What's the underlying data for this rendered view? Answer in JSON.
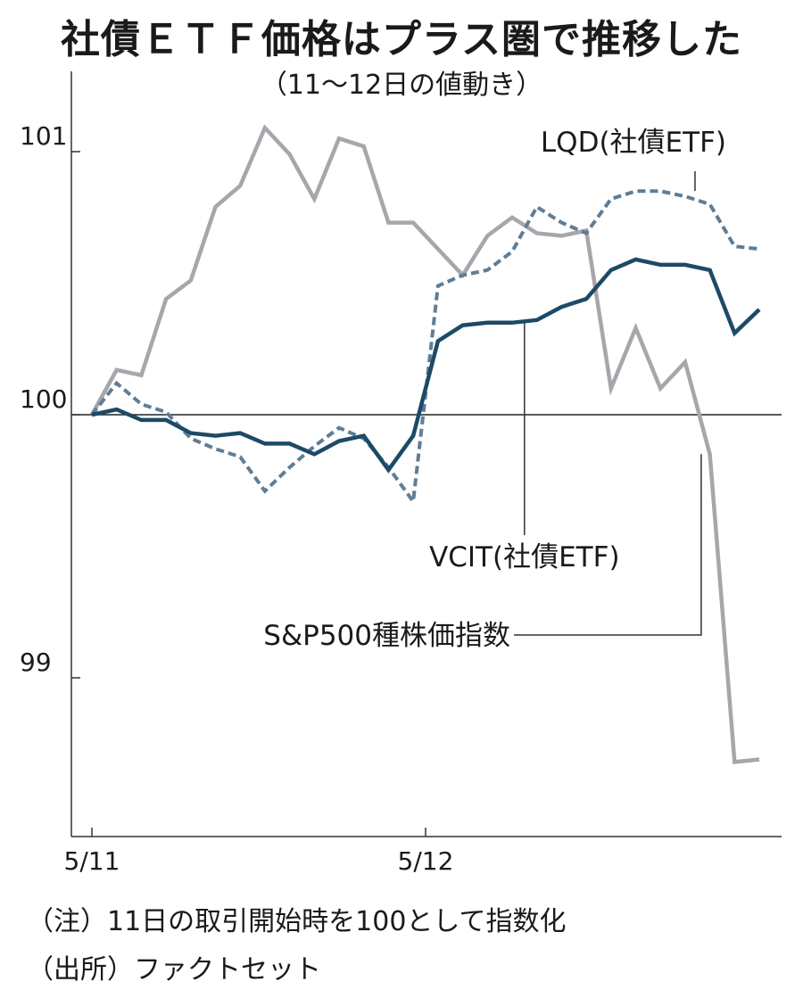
{
  "title": "社債ＥＴＦ価格はプラス圏で推移した",
  "subtitle": "（11〜12日の値動き）",
  "notes": {
    "note": "（注）11日の取引開始時を100として指数化",
    "source": "（出所）ファクトセット"
  },
  "chart_data": {
    "type": "line",
    "ylim": [
      98.4,
      101.3
    ],
    "yticks": [
      99,
      100,
      101
    ],
    "baseline": 100,
    "xlim": [
      0,
      27
    ],
    "xtick_labels": [
      {
        "x": 0,
        "label": "5/11"
      },
      {
        "x": 13.5,
        "label": "5/12"
      }
    ],
    "grid": false,
    "series": [
      {
        "name": "S&P500種株価指数",
        "color": "#a8a6ac",
        "style": "solid",
        "values": [
          100.0,
          100.17,
          100.15,
          100.44,
          100.51,
          100.79,
          100.87,
          101.09,
          100.99,
          100.82,
          101.05,
          101.02,
          100.73,
          100.73,
          100.63,
          100.53,
          100.68,
          100.75,
          100.69,
          100.68,
          100.7,
          100.1,
          100.33,
          100.1,
          100.2,
          99.85,
          98.68,
          98.69
        ]
      },
      {
        "name": "LQD(社債ETF)",
        "color": "#5f7d96",
        "style": "dashed",
        "values": [
          100.0,
          100.12,
          100.04,
          100.01,
          99.91,
          99.87,
          99.84,
          99.71,
          99.8,
          99.88,
          99.95,
          99.91,
          99.8,
          99.67,
          100.49,
          100.53,
          100.55,
          100.62,
          100.79,
          100.73,
          100.69,
          100.82,
          100.85,
          100.85,
          100.83,
          100.8,
          100.64,
          100.63
        ]
      },
      {
        "name": "VCIT(社債ETF)",
        "color": "#1d4a66",
        "style": "solid",
        "values": [
          100.0,
          100.02,
          99.98,
          99.98,
          99.93,
          99.92,
          99.93,
          99.89,
          99.89,
          99.85,
          99.9,
          99.92,
          99.79,
          99.92,
          100.28,
          100.34,
          100.35,
          100.35,
          100.36,
          100.41,
          100.44,
          100.55,
          100.59,
          100.57,
          100.57,
          100.55,
          100.31,
          100.4
        ]
      }
    ]
  }
}
